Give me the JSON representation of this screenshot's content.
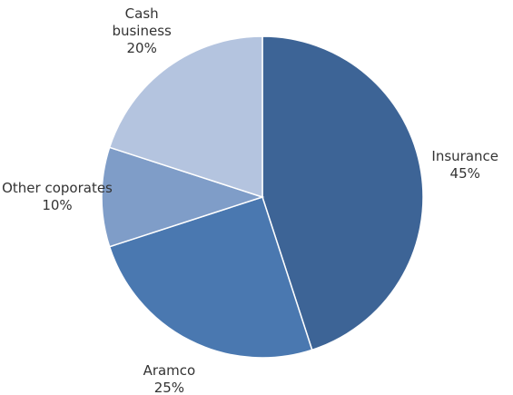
{
  "chart_data": {
    "type": "pie",
    "categories": [
      "Insurance",
      "Aramco",
      "Other coporates",
      "Cash\nbusiness"
    ],
    "values": [
      45,
      25,
      10,
      20
    ],
    "value_labels": [
      "45%",
      "25%",
      "10%",
      "20%"
    ],
    "colors": [
      "#3d6496",
      "#4a78b0",
      "#7f9dc8",
      "#b4c4df"
    ]
  }
}
